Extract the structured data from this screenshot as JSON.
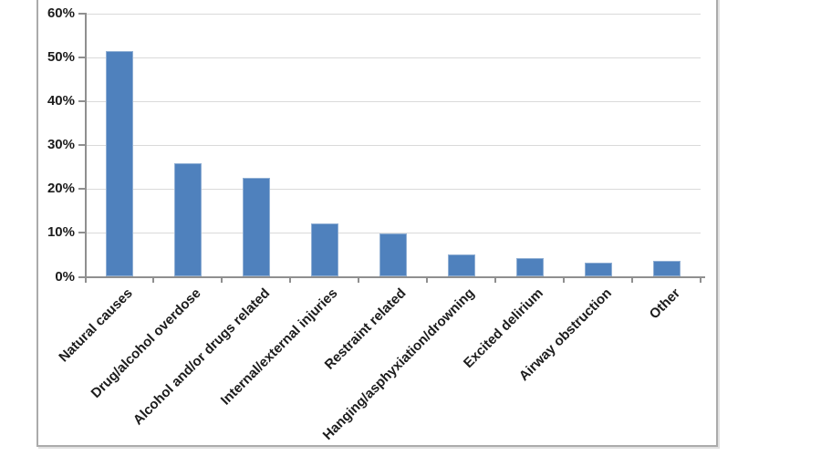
{
  "chart_data": {
    "type": "bar",
    "title": "",
    "xlabel": "",
    "ylabel": "",
    "categories": [
      "Natural causes",
      "Drug/alcohol overdose",
      "Alcohol and/or drugs related",
      "Internal/external injuries",
      "Restraint related",
      "Hanging/asphyxiation/drowning",
      "Excited delirium",
      "Airway obstruction",
      "Other"
    ],
    "values": [
      51.5,
      25.9,
      22.6,
      12.2,
      9.8,
      5.1,
      4.2,
      3.2,
      3.6
    ],
    "ylim": [
      0,
      60
    ],
    "ytick_step": 10,
    "ytick_labels": [
      "0%",
      "10%",
      "20%",
      "30%",
      "40%",
      "50%",
      "60%"
    ],
    "grid": true,
    "legend": false,
    "colors": {
      "bar_fill": "#4f81bd",
      "bar_border": "#90afd4",
      "gridline": "#dadada",
      "axis": "#8f8f8f",
      "text": "#1c1c1c",
      "frame_border": "#ababab"
    }
  }
}
